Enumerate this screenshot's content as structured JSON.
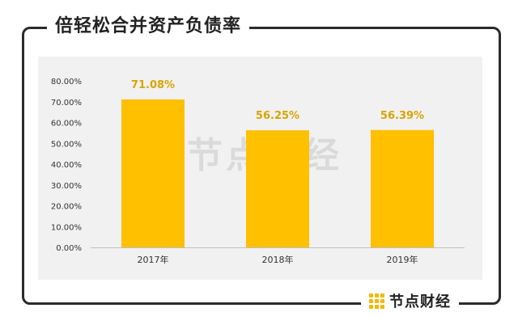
{
  "title": "倍轻松合并资产负债率",
  "watermark": "节点财经",
  "brand": "节点财经",
  "colors": {
    "bar": "#ffc000",
    "label": "#d9a400",
    "frame": "#2b2b2b",
    "plot_bg": "#f1f1f1"
  },
  "chart_data": {
    "type": "bar",
    "title": "倍轻松合并资产负债率",
    "categories": [
      "2017年",
      "2018年",
      "2019年"
    ],
    "values": [
      71.08,
      56.25,
      56.39
    ],
    "value_labels": [
      "71.08%",
      "56.25%",
      "56.39%"
    ],
    "y_ticks": [
      "0.00%",
      "10.00%",
      "20.00%",
      "30.00%",
      "40.00%",
      "50.00%",
      "60.00%",
      "70.00%",
      "80.00%"
    ],
    "ylim": [
      0,
      80
    ],
    "grid": false,
    "legend": "none"
  }
}
